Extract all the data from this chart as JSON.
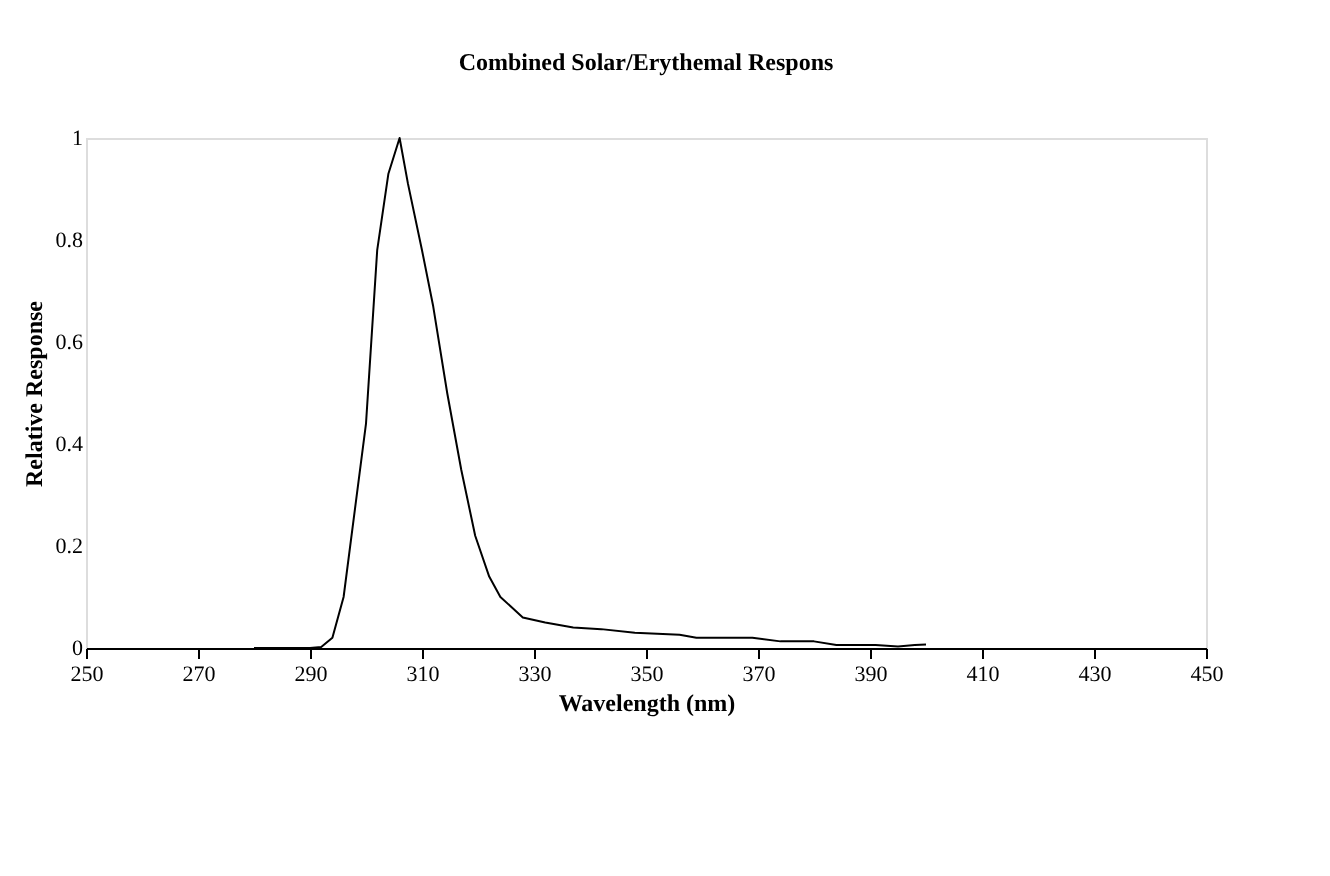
{
  "chart_data": {
    "type": "line",
    "title": "Combined Solar/Erythemal Respons",
    "xlabel": "Wavelength (nm)",
    "ylabel": "Relative Response",
    "x": [
      280,
      290,
      292,
      294,
      296,
      300,
      302,
      304,
      306,
      307.5,
      310,
      312,
      314.5,
      317,
      319.5,
      322,
      324,
      328,
      332,
      337,
      342,
      348,
      356,
      359,
      369,
      374,
      380,
      384,
      391,
      395,
      398,
      400
    ],
    "series": [
      {
        "color": "#000000",
        "values": [
          0,
          0,
          0.002,
          0.02,
          0.1,
          0.44,
          0.78,
          0.93,
          1.0,
          0.91,
          0.78,
          0.67,
          0.5,
          0.35,
          0.22,
          0.14,
          0.1,
          0.06,
          0.05,
          0.04,
          0.037,
          0.03,
          0.026,
          0.02,
          0.02,
          0.013,
          0.013,
          0.006,
          0.006,
          0.003,
          0.006,
          0.007
        ]
      }
    ],
    "xlim": [
      250,
      450
    ],
    "xticks": [
      250,
      270,
      290,
      310,
      330,
      350,
      370,
      390,
      410,
      430,
      450
    ],
    "ylim": [
      0,
      1
    ],
    "yticks": [
      0,
      0.2,
      0.4,
      0.6,
      0.8,
      1
    ],
    "grid": false,
    "legend": false,
    "marker": "none",
    "line_style": "solid"
  }
}
